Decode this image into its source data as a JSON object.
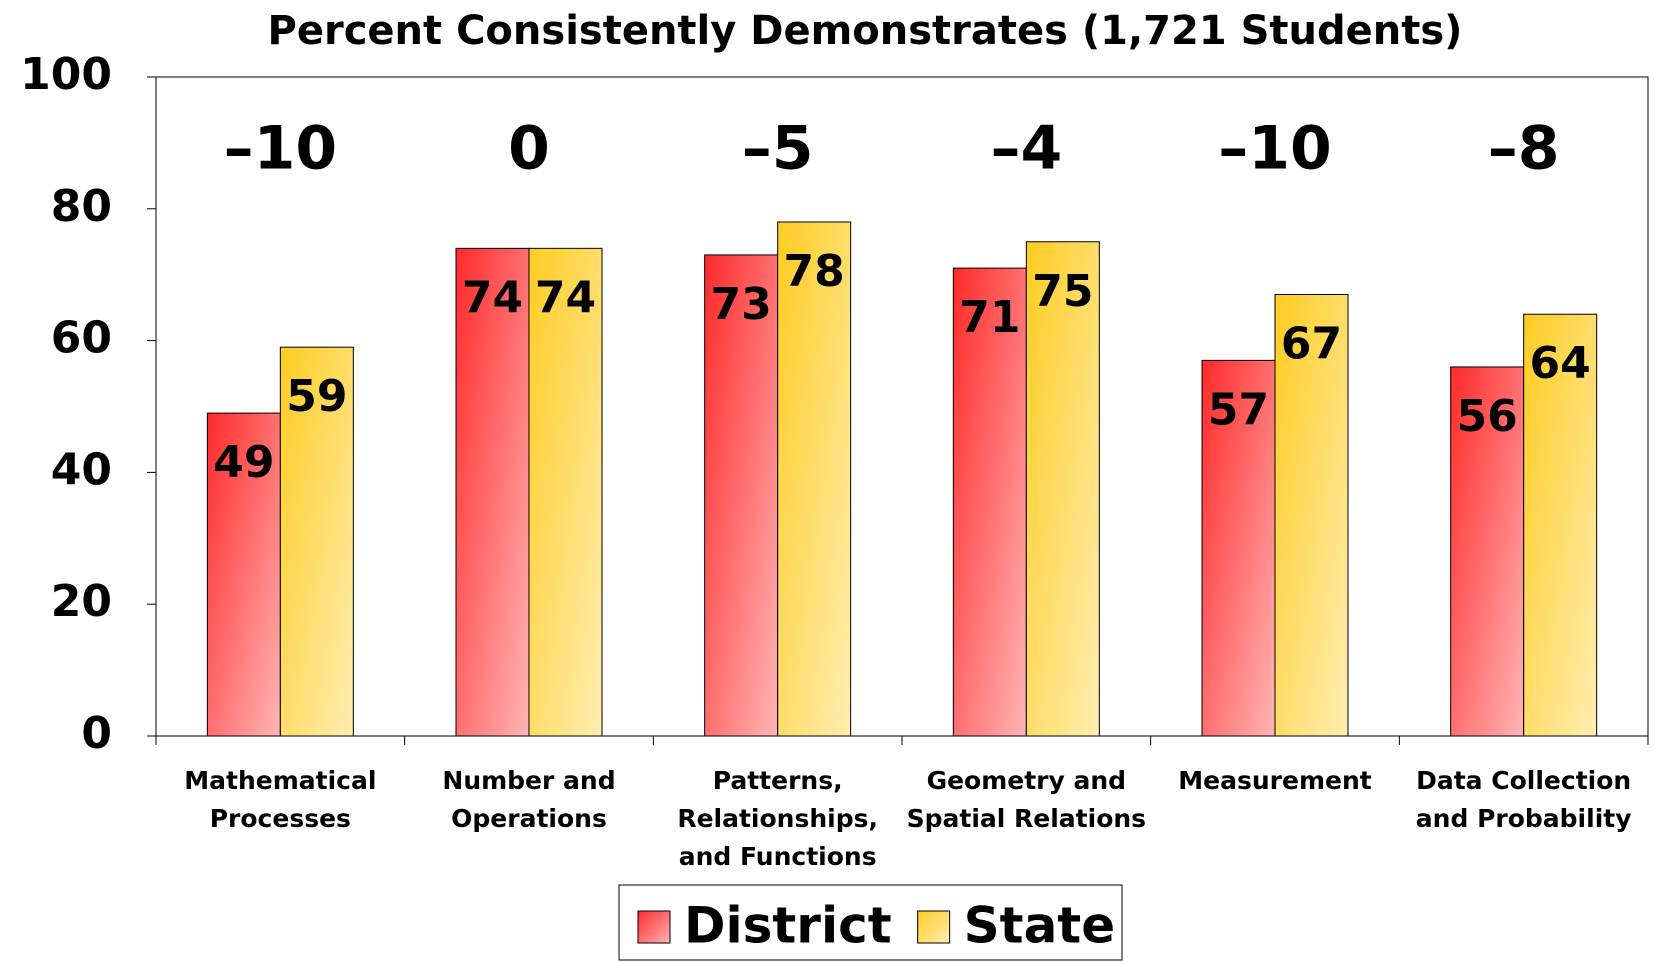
{
  "chart_data": {
    "type": "bar",
    "title": "Percent Consistently Demonstrates (1,721 Students)",
    "categories": [
      "Mathematical Processes",
      "Number and Operations",
      "Patterns, Relationships, and Functions",
      "Geometry and Spatial Relations",
      "Measurement",
      "Data Collection and Probability"
    ],
    "series": [
      {
        "name": "District",
        "color": "#ff2a2a",
        "values": [
          49,
          74,
          73,
          71,
          57,
          56
        ]
      },
      {
        "name": "State",
        "color": "#ffcc22",
        "values": [
          59,
          74,
          78,
          75,
          67,
          64
        ]
      }
    ],
    "difference_labels": [
      "–10",
      "0",
      "–5",
      "–4",
      "–10",
      "–8"
    ],
    "ylim": [
      0,
      100
    ],
    "yticks": [
      0,
      20,
      40,
      60,
      80,
      100
    ],
    "grid": false,
    "legend": "bottom"
  }
}
